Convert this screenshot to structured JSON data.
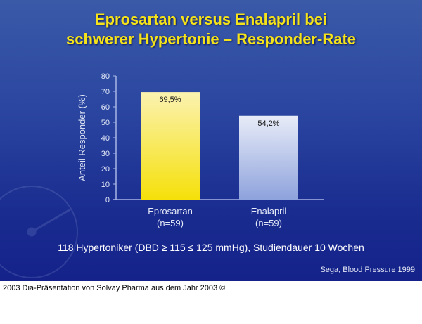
{
  "title": {
    "line1": "Eprosartan versus Enalapril bei",
    "line2": "schwerer Hypertonie – Responder-Rate"
  },
  "chart_data": {
    "type": "bar",
    "categories": [
      "Eprosartan",
      "Enalapril"
    ],
    "category_sublabels": [
      "(n=59)",
      "(n=59)"
    ],
    "values": [
      69.5,
      54.2
    ],
    "data_labels": [
      "69,5%",
      "54,2%"
    ],
    "ylabel": "Anteil Responder (%)",
    "xlabel": "",
    "ylim": [
      0,
      80
    ],
    "yticks": [
      0,
      10,
      20,
      30,
      40,
      50,
      60,
      70,
      80
    ],
    "grid": false,
    "colors": [
      "#f5e21a",
      "#c8d2ef"
    ]
  },
  "note": "118 Hypertoniker (DBD ≥ 115 ≤ 125 mmHg), Studiendauer 10 Wochen",
  "source": "Sega, Blood Pressure 1999",
  "footer": "2003 Dia-Präsentation von Solvay Pharma aus dem Jahr 2003 ©"
}
